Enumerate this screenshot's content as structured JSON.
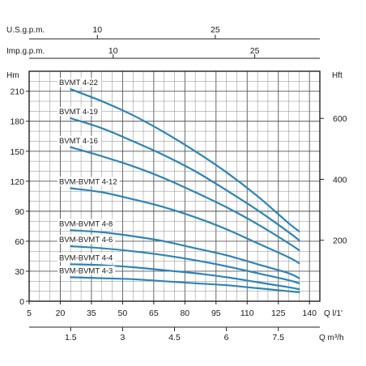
{
  "chart_data": {
    "type": "line",
    "top_axis_1": {
      "label": "U.S.g.p.m.",
      "ticks": [
        "10",
        "25"
      ]
    },
    "top_axis_2": {
      "label": "Imp.g.p.m.",
      "ticks": [
        "10",
        "25"
      ]
    },
    "left_axis": {
      "unit": "Hm",
      "ticks": [
        "0",
        "30",
        "60",
        "90",
        "120",
        "150",
        "180",
        "210"
      ],
      "ylim": [
        0,
        230
      ]
    },
    "right_axis": {
      "unit": "Hft",
      "ticks": [
        "200",
        "400",
        "600"
      ]
    },
    "bottom_axis_1": {
      "unit": "Q l/1'",
      "ticks": [
        "5",
        "20",
        "35",
        "50",
        "65",
        "80",
        "95",
        "110",
        "125",
        "140"
      ],
      "xlim": [
        5,
        145
      ]
    },
    "bottom_axis_2": {
      "unit": "Q m³/h",
      "ticks": [
        "1.5",
        "3",
        "4.5",
        "6",
        "7.5"
      ]
    },
    "grid": true,
    "curve_color": "#2e84b8",
    "series": [
      {
        "name": "BVMT 4-22",
        "x": [
          25,
          40,
          55,
          70,
          85,
          100,
          115,
          130,
          135
        ],
        "y": [
          212,
          200,
          186,
          169,
          150,
          129,
          105,
          78,
          70
        ]
      },
      {
        "name": "BVMT 4-19",
        "x": [
          25,
          40,
          55,
          70,
          85,
          100,
          115,
          130,
          135
        ],
        "y": [
          183,
          173,
          160,
          146,
          130,
          111,
          91,
          69,
          61
        ]
      },
      {
        "name": "BVMT 4-16",
        "x": [
          25,
          40,
          55,
          70,
          85,
          100,
          115,
          130,
          135
        ],
        "y": [
          154,
          145,
          135,
          123,
          109,
          94,
          77,
          58,
          51
        ]
      },
      {
        "name": "BVM-BVMT 4-12",
        "x": [
          25,
          40,
          55,
          70,
          85,
          100,
          115,
          130,
          135
        ],
        "y": [
          113,
          109,
          102,
          94,
          84,
          72,
          58,
          44,
          38
        ]
      },
      {
        "name": "BVM-BVMT 4-8",
        "x": [
          25,
          40,
          55,
          70,
          85,
          100,
          115,
          130,
          135
        ],
        "y": [
          71,
          69,
          65,
          60,
          53,
          46,
          37,
          28,
          23
        ]
      },
      {
        "name": "BVM-BVMT 4-6",
        "x": [
          25,
          40,
          55,
          70,
          85,
          100,
          115,
          130,
          135
        ],
        "y": [
          55,
          53,
          50,
          46,
          41,
          35,
          28,
          21,
          18
        ]
      },
      {
        "name": "BVM-BVMT 4-4",
        "x": [
          25,
          40,
          55,
          70,
          85,
          100,
          115,
          130,
          135
        ],
        "y": [
          37,
          36,
          34,
          31,
          28,
          24,
          19,
          14,
          12
        ]
      },
      {
        "name": "BVM-BVMT 4-3",
        "x": [
          25,
          40,
          55,
          70,
          85,
          100,
          115,
          130,
          135
        ],
        "y": [
          24,
          23,
          22,
          20,
          18,
          16,
          13,
          10,
          9
        ]
      }
    ]
  }
}
